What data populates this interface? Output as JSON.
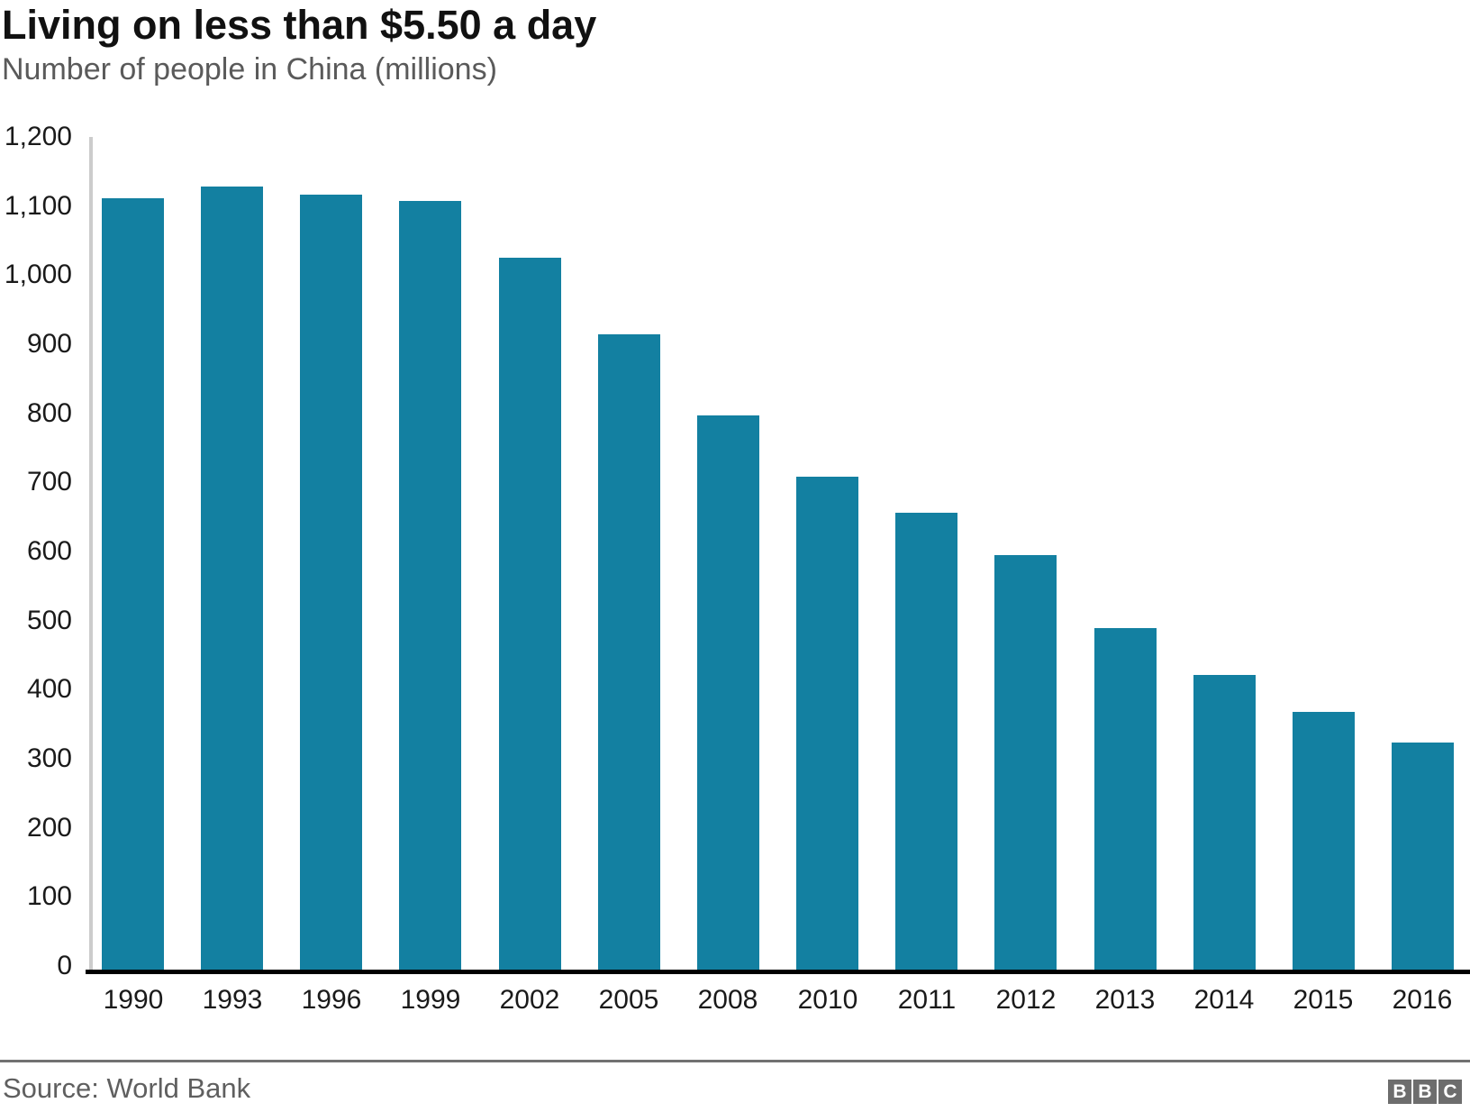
{
  "header": {
    "title": "Living on less than $5.50 a day",
    "subtitle": "Number of people in China (millions)"
  },
  "chart_data": {
    "type": "bar",
    "title": "Living on less than $5.50 a day",
    "subtitle": "Number of people in China (millions)",
    "categories": [
      "1990",
      "1993",
      "1996",
      "1999",
      "2002",
      "2005",
      "2008",
      "2010",
      "2011",
      "2012",
      "2013",
      "2014",
      "2015",
      "2016"
    ],
    "values": [
      1116,
      1133,
      1122,
      1112,
      1031,
      919,
      802,
      714,
      661,
      600,
      494,
      427,
      373,
      329
    ],
    "xlabel": "",
    "ylabel": "",
    "ylim": [
      0,
      1200
    ],
    "ytick_interval": 100,
    "ytick_labels": [
      "0",
      "100",
      "200",
      "300",
      "400",
      "500",
      "600",
      "700",
      "800",
      "900",
      "1,000",
      "1,100",
      "1,200"
    ],
    "grid": false,
    "legend": "none",
    "bar_color": "#1380A1"
  },
  "footer": {
    "source": "Source: World Bank",
    "logo_letters": [
      "B",
      "B",
      "C"
    ],
    "logo_color": "#6d6d6d"
  },
  "colors": {
    "bar": "#1380A1",
    "y_axis_line": "#cccccc",
    "baseline": "#000000",
    "divider": "#717171",
    "title_text": "#111111",
    "subtitle_text": "#5a5a5a",
    "tick_text": "#1a1a1a",
    "source_text": "#5f5f5f",
    "logo_background": "#6d6d6d"
  }
}
